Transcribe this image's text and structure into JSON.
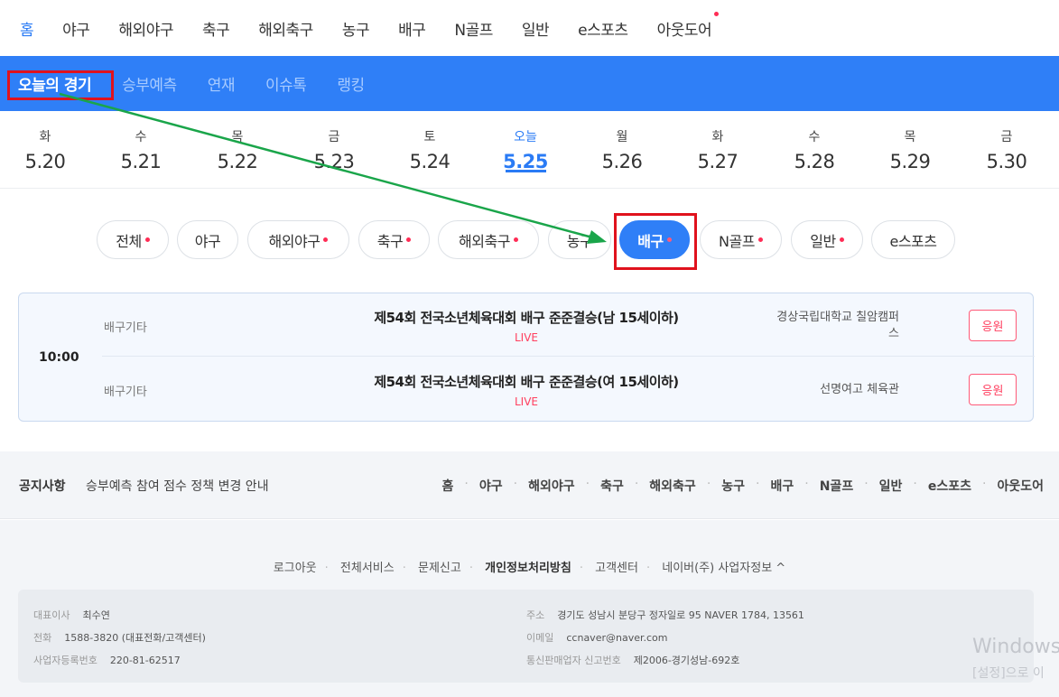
{
  "topnav": {
    "items": [
      "홈",
      "야구",
      "해외야구",
      "축구",
      "해외축구",
      "농구",
      "배구",
      "N골프",
      "일반",
      "e스포츠",
      "아웃도어"
    ]
  },
  "subnav": {
    "items": [
      "오늘의 경기",
      "승부예측",
      "연재",
      "이슈톡",
      "랭킹"
    ]
  },
  "dates": [
    {
      "dow": "화",
      "num": "5.20"
    },
    {
      "dow": "수",
      "num": "5.21"
    },
    {
      "dow": "목",
      "num": "5.22"
    },
    {
      "dow": "금",
      "num": "5.23"
    },
    {
      "dow": "토",
      "num": "5.24"
    },
    {
      "dow": "오늘",
      "num": "5.25"
    },
    {
      "dow": "월",
      "num": "5.26"
    },
    {
      "dow": "화",
      "num": "5.27"
    },
    {
      "dow": "수",
      "num": "5.28"
    },
    {
      "dow": "목",
      "num": "5.29"
    },
    {
      "dow": "금",
      "num": "5.30"
    }
  ],
  "chips": [
    "전체",
    "야구",
    "해외야구",
    "축구",
    "해외축구",
    "농구",
    "배구",
    "N골프",
    "일반",
    "e스포츠"
  ],
  "game": {
    "time": "10:00",
    "rows": [
      {
        "category": "배구기타",
        "title": "제54회 전국소년체육대회 배구 준준결승(남 15세이하)",
        "status": "LIVE",
        "venue": "경상국립대학교 칠암캠퍼스",
        "cheer": "응원"
      },
      {
        "category": "배구기타",
        "title": "제54회 전국소년체육대회 배구 준준결승(여 15세이하)",
        "status": "LIVE",
        "venue": "선명여고 체육관",
        "cheer": "응원"
      }
    ]
  },
  "notice": {
    "label": "공지사항",
    "text": "승부예측 참여 점수 정책 변경 안내",
    "links": [
      "홈",
      "야구",
      "해외야구",
      "축구",
      "해외축구",
      "농구",
      "배구",
      "N골프",
      "일반",
      "e스포츠",
      "아웃도어"
    ]
  },
  "footer": {
    "links": [
      "로그아웃",
      "전체서비스",
      "문제신고",
      "개인정보처리방침",
      "고객센터",
      "네이버(주) 사업자정보 ^"
    ],
    "ceo_label": "대표이사",
    "ceo": "최수연",
    "phone_label": "전화",
    "phone": "1588-3820 (대표전화/고객센터)",
    "biz_label": "사업자등록번호",
    "biz": "220-81-62517",
    "addr_label": "주소",
    "addr": "경기도 성남시 분당구 정자일로 95 NAVER 1784, 13561",
    "email_label": "이메일",
    "email": "ccnaver@naver.com",
    "mail_label": "통신판매업자 신고번호",
    "mail": "제2006-경기성남-692호"
  },
  "watermark": {
    "line1": "Windows",
    "line2": "[설정]으로 이"
  },
  "colors": {
    "accent": "#2f7ff7",
    "live": "#ff3f5f",
    "annotation": "#e0121d",
    "arrow": "#1aa54a"
  }
}
